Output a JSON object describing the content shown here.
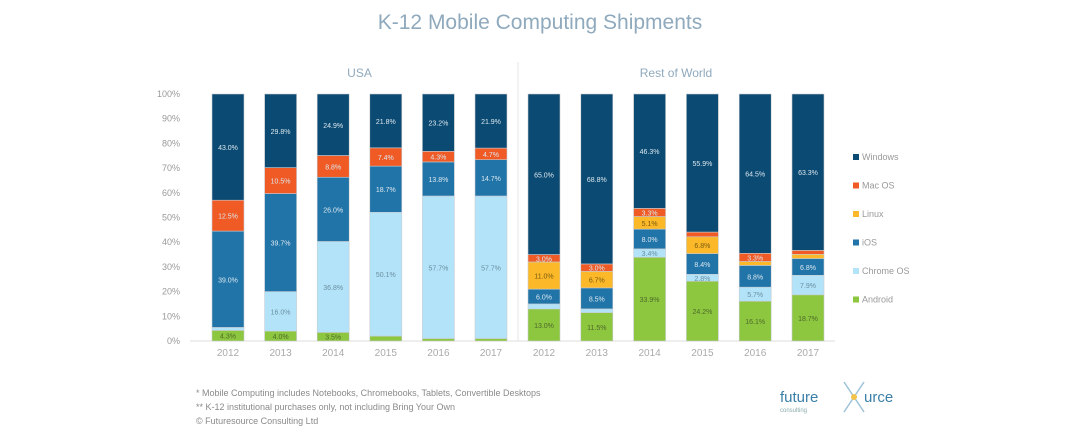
{
  "chart_data": {
    "type": "bar",
    "stacked": true,
    "title": "K-12 Mobile Computing Shipments",
    "ylim": [
      0,
      100
    ],
    "yticks": [
      "0%",
      "10%",
      "20%",
      "30%",
      "40%",
      "50%",
      "60%",
      "70%",
      "80%",
      "90%",
      "100%"
    ],
    "legend_position": "right",
    "legend": [
      "Windows",
      "Mac OS",
      "Linux",
      "iOS",
      "Chrome OS",
      "Android"
    ],
    "colors": {
      "Windows": "#0b4a72",
      "Mac OS": "#f05a24",
      "Linux": "#fbb829",
      "iOS": "#2174a8",
      "Chrome OS": "#b3e3f8",
      "Android": "#8dc63f"
    },
    "panels": [
      {
        "label": "USA",
        "categories": [
          "2012",
          "2013",
          "2014",
          "2015",
          "2016",
          "2017"
        ],
        "series": [
          {
            "name": "Android",
            "values": [
              4.3,
              4.0,
              3.5,
              2.0,
              1.0,
              1.0
            ]
          },
          {
            "name": "Chrome OS",
            "values": [
              1.2,
              16.0,
              36.8,
              50.1,
              57.7,
              57.7
            ]
          },
          {
            "name": "iOS",
            "values": [
              39.0,
              39.7,
              26.0,
              18.7,
              13.8,
              14.7
            ]
          },
          {
            "name": "Linux",
            "values": [
              0,
              0,
              0,
              0,
              0,
              0
            ]
          },
          {
            "name": "Mac OS",
            "values": [
              12.5,
              10.5,
              8.8,
              7.4,
              4.3,
              4.7
            ]
          },
          {
            "name": "Windows",
            "values": [
              43.0,
              29.8,
              24.9,
              21.8,
              23.2,
              21.9
            ]
          }
        ]
      },
      {
        "label": "Rest of World",
        "categories": [
          "2012",
          "2013",
          "2014",
          "2015",
          "2016",
          "2017"
        ],
        "series": [
          {
            "name": "Android",
            "values": [
              13.0,
              11.5,
              33.9,
              24.2,
              16.1,
              18.7
            ]
          },
          {
            "name": "Chrome OS",
            "values": [
              2.0,
              1.5,
              3.4,
              2.8,
              5.7,
              7.9
            ]
          },
          {
            "name": "iOS",
            "values": [
              6.0,
              8.5,
              8.0,
              8.4,
              8.8,
              6.8
            ]
          },
          {
            "name": "Linux",
            "values": [
              11.0,
              6.7,
              5.1,
              6.8,
              1.6,
              1.7
            ]
          },
          {
            "name": "Mac OS",
            "values": [
              3.0,
              3.0,
              3.3,
              1.9,
              3.3,
              1.6
            ]
          },
          {
            "name": "Windows",
            "values": [
              65.0,
              68.8,
              46.3,
              55.9,
              64.5,
              63.3
            ]
          }
        ]
      }
    ]
  },
  "footnotes": [
    "* Mobile Computing includes Notebooks, Chromebooks, Tablets, Convertible Desktops",
    "** K-12 institutional purchases only, not including Bring Your Own",
    "© Futuresource Consulting Ltd"
  ],
  "logo": {
    "text": "futuresource",
    "sub": "consulting"
  }
}
